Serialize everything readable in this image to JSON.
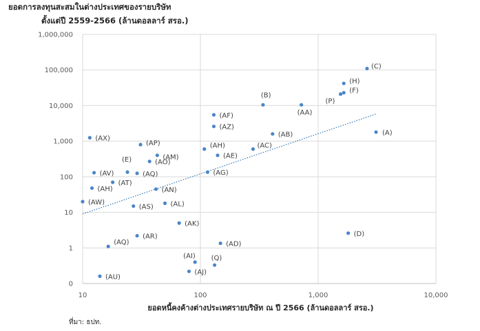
{
  "title_line1": "ยอดการลงทุนสะสมในต่างประเทศของรายบริษัท",
  "title_line2": "ตั้งแต่ปี 2559-2566 (ล้านดอลลาร์ สรอ.)",
  "source": "ที่มา: ธปท.",
  "colors": {
    "point": "#4a86c8",
    "trend": "#2e75b6",
    "grid": "#d9d9d9",
    "axis": "#bfbfbf"
  },
  "chart_data": {
    "type": "scatter",
    "xlabel": "ยอดหนี้คงค้างต่างประเทศรายบริษัท ณ ปี 2566 (ล้านดอลลาร์ สรอ.)",
    "ylabel": "",
    "x_scale": "log",
    "y_scale": "log",
    "xlim": [
      10,
      10000
    ],
    "ylim": [
      0.1,
      1000000
    ],
    "x_ticks": [
      10,
      100,
      1000,
      10000
    ],
    "x_tick_labels": [
      "10",
      "100",
      "1,000",
      "10,000"
    ],
    "y_ticks": [
      0.1,
      1,
      10,
      100,
      1000,
      10000,
      100000,
      1000000
    ],
    "y_tick_labels": [
      "0",
      "1",
      "10",
      "100",
      "1,000",
      "10,000",
      "100,000",
      "1,000,000"
    ],
    "grid": true,
    "trendline": {
      "style": "dotted",
      "type": "power",
      "x": [
        10,
        3100
      ],
      "y": [
        9,
        5800
      ]
    },
    "points": [
      {
        "label": "(C)",
        "x": 2600,
        "y": 110000
      },
      {
        "label": "(H)",
        "x": 1650,
        "y": 42000
      },
      {
        "label": "(F)",
        "x": 1650,
        "y": 23000
      },
      {
        "label": "(P)",
        "x": 1550,
        "y": 21000
      },
      {
        "label": "(B)",
        "x": 340,
        "y": 10500
      },
      {
        "label": "(AA)",
        "x": 720,
        "y": 10500
      },
      {
        "label": "(AF)",
        "x": 130,
        "y": 5500
      },
      {
        "label": "(AZ)",
        "x": 130,
        "y": 2600
      },
      {
        "label": "(A)",
        "x": 3100,
        "y": 1800
      },
      {
        "label": "(AB)",
        "x": 410,
        "y": 1600
      },
      {
        "label": "(AX)",
        "x": 11.5,
        "y": 1250
      },
      {
        "label": "(AP)",
        "x": 31,
        "y": 800
      },
      {
        "label": "(AH)",
        "x": 108,
        "y": 600
      },
      {
        "label": "(AC)",
        "x": 280,
        "y": 600
      },
      {
        "label": "(AM)",
        "x": 43,
        "y": 400
      },
      {
        "label": "(AE)",
        "x": 140,
        "y": 400
      },
      {
        "label": "(AO)",
        "x": 37,
        "y": 270
      },
      {
        "label": "(E)",
        "x": 24,
        "y": 135
      },
      {
        "label": "(AV)",
        "x": 12.5,
        "y": 130
      },
      {
        "label": "(AQ)",
        "x": 29,
        "y": 125
      },
      {
        "label": "(AG)",
        "x": 115,
        "y": 135
      },
      {
        "label": "(AT)",
        "x": 18,
        "y": 70
      },
      {
        "label": "(AH)",
        "x": 12,
        "y": 48
      },
      {
        "label": "(AN)",
        "x": 42,
        "y": 45
      },
      {
        "label": "(AW)",
        "x": 10,
        "y": 20
      },
      {
        "label": "(AS)",
        "x": 27,
        "y": 15
      },
      {
        "label": "(AL)",
        "x": 50,
        "y": 18
      },
      {
        "label": "(AK)",
        "x": 66,
        "y": 5
      },
      {
        "label": "(D)",
        "x": 1800,
        "y": 2.6
      },
      {
        "label": "(AR)",
        "x": 29,
        "y": 2.2
      },
      {
        "label": "(AQ)",
        "x": 16.5,
        "y": 1.1
      },
      {
        "label": "(AD)",
        "x": 148,
        "y": 1.35
      },
      {
        "label": "(AI)",
        "x": 90,
        "y": 0.4
      },
      {
        "label": "(Q)",
        "x": 132,
        "y": 0.33
      },
      {
        "label": "(AJ)",
        "x": 80,
        "y": 0.22
      },
      {
        "label": "(AU)",
        "x": 14,
        "y": 0.16
      }
    ]
  }
}
